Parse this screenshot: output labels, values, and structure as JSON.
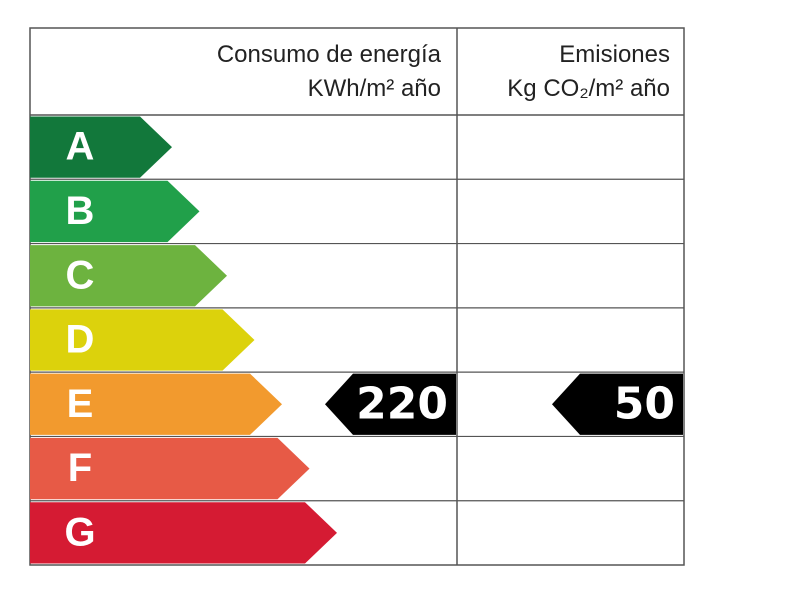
{
  "header": {
    "consumption_title": "Consumo de energía",
    "consumption_unit": "KWh/m² año",
    "emissions_title": "Emisiones",
    "emissions_unit": "Kg CO₂/m² año"
  },
  "classes": [
    {
      "label": "A",
      "color": "#12783b"
    },
    {
      "label": "B",
      "color": "#21a04a"
    },
    {
      "label": "C",
      "color": "#6db33f"
    },
    {
      "label": "D",
      "color": "#dcd20c"
    },
    {
      "label": "E",
      "color": "#f29a2e"
    },
    {
      "label": "F",
      "color": "#e75a46"
    },
    {
      "label": "G",
      "color": "#d51b33"
    }
  ],
  "consumption": {
    "value": 220,
    "rating": "E"
  },
  "emissions": {
    "value": 50,
    "rating": "E"
  }
}
